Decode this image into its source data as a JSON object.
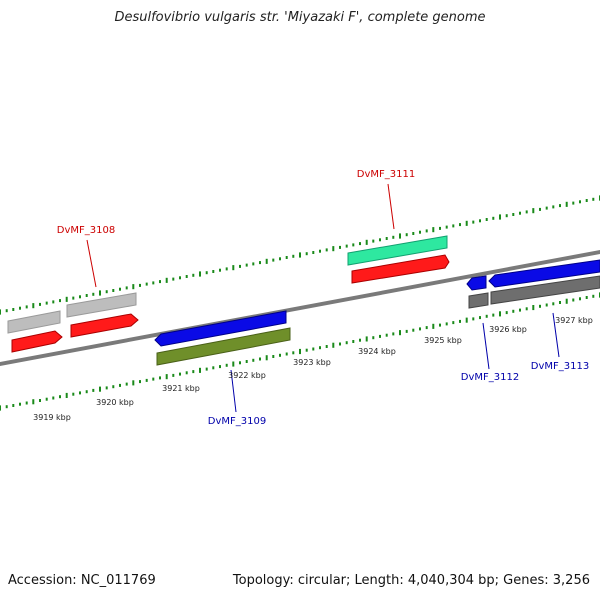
{
  "title": "Desulfovibrio vulgaris str. 'Miyazaki F', complete genome",
  "footer": {
    "accession": "Accession: NC_011769",
    "summary": "Topology: circular; Length: 4,040,304 bp; Genes: 3,256"
  },
  "colors": {
    "backbone": "#7a7a7a",
    "tick": "#1a8a1a",
    "forward_label": "#cc0000",
    "reverse_label": "#0000aa",
    "gray_gene": "#bdbdbd",
    "dark_gray_gene": "#6e6e6e",
    "red_gene": "#ff1a1a",
    "blue_gene": "#0a0ae6",
    "teal_gene": "#2ee8a0",
    "olive_gene": "#6f8f2a"
  },
  "ruler": {
    "labels": [
      "3919 kbp",
      "3920 kbp",
      "3921 kbp",
      "3922 kbp",
      "3923 kbp",
      "3924 kbp",
      "3925 kbp",
      "3926 kbp",
      "3927 kbp"
    ]
  },
  "gene_labels": {
    "forward": [
      "DvMF_3108",
      "DvMF_3111"
    ],
    "reverse": [
      "DvMF_3109",
      "DvMF_3112",
      "DvMF_3113"
    ]
  }
}
